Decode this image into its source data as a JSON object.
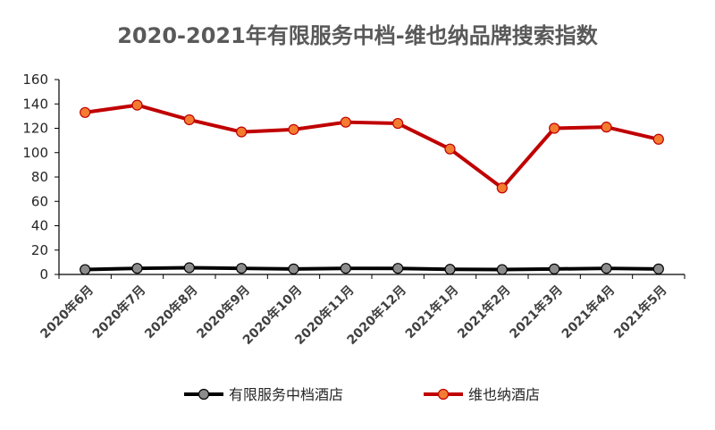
{
  "chart_data": {
    "type": "line",
    "title": "2020-2021年有限服务中档-维也纳品牌搜索指数",
    "categories": [
      "2020年6月",
      "2020年7月",
      "2020年8月",
      "2020年9月",
      "2020年10月",
      "2020年11月",
      "2020年12月",
      "2021年1月",
      "2021年2月",
      "2021年3月",
      "2021年4月",
      "2021年5月"
    ],
    "ylim": [
      0,
      160
    ],
    "yticks": [
      0,
      20,
      40,
      60,
      80,
      100,
      120,
      140,
      160
    ],
    "grid": false,
    "legend_position": "bottom",
    "series": [
      {
        "name": "有限服务中档酒店",
        "values": [
          4,
          5,
          5.5,
          5,
          4.5,
          5,
          5,
          4.2,
          4,
          4.5,
          5,
          4.5
        ],
        "line_color": "#000000",
        "marker_color": "#8c8c8c"
      },
      {
        "name": "维也纳酒店",
        "values": [
          133,
          139,
          127,
          117,
          119,
          125,
          124,
          103,
          71,
          120,
          121,
          111
        ],
        "line_color": "#c00000",
        "marker_color": "#f47c30"
      }
    ]
  }
}
